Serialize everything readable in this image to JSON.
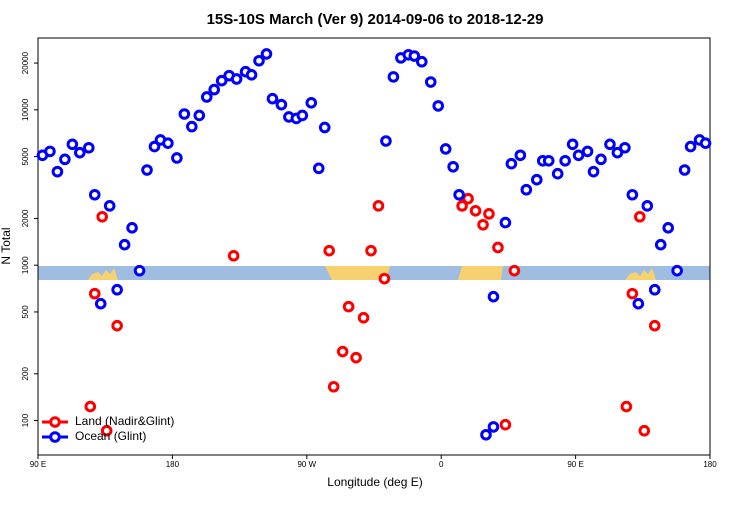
{
  "chart_data": {
    "type": "scatter",
    "title": "15S-10S March (Ver 9)   2014-09-06 to 2018-12-29",
    "x_label": "Longitude (deg E)",
    "y_label": "N Total",
    "y_log": true,
    "legend": "bottom-left",
    "xlim": [
      90,
      540
    ],
    "xticks": [
      {
        "value": 90,
        "label": "90 E"
      },
      {
        "value": 180,
        "label": "180"
      },
      {
        "value": 270,
        "label": "90 W"
      },
      {
        "value": 360,
        "label": "0"
      },
      {
        "value": 450,
        "label": "90 E"
      },
      {
        "value": 540,
        "label": "180"
      }
    ],
    "ylim": [
      60,
      29000
    ],
    "yticks": [
      100,
      200,
      500,
      1000,
      2000,
      5000,
      10000,
      20000
    ],
    "series": [
      {
        "name": "Land (Nadir&Glint)",
        "color": "#ff0000",
        "x": [
          125,
          128,
          133,
          136,
          143,
          221,
          285,
          288,
          294,
          298,
          303,
          308,
          313,
          318,
          322,
          374,
          378,
          383,
          388,
          392,
          398,
          403,
          409,
          484,
          488,
          493,
          496,
          503
        ],
        "values": [
          123,
          656,
          2050,
          86,
          408,
          1150,
          1240,
          165,
          278,
          541,
          254,
          459,
          1240,
          2410,
          819,
          2410,
          2680,
          2240,
          1820,
          2140,
          1300,
          94,
          922,
          123,
          656,
          2050,
          86,
          408
        ]
      },
      {
        "name": "Ocean (Glint)",
        "color": "#0000ff",
        "x": [
          93,
          98,
          103,
          108,
          113,
          118,
          124,
          128,
          132,
          138,
          143,
          148,
          153,
          158,
          163,
          168,
          172,
          177,
          183,
          188,
          193,
          198,
          203,
          208,
          213,
          218,
          223,
          229,
          233,
          238,
          243,
          247,
          253,
          258,
          263,
          267,
          273,
          278,
          282,
          323,
          328,
          333,
          338,
          342,
          347,
          353,
          358,
          363,
          368,
          372,
          390,
          395,
          395,
          403,
          407,
          413,
          417,
          424,
          428,
          432,
          438,
          443,
          448,
          452,
          458,
          462,
          467,
          473,
          478,
          483,
          488,
          492,
          498,
          503,
          507,
          512,
          518,
          523,
          527,
          533,
          537
        ],
        "values": [
          5100,
          5400,
          4000,
          4800,
          6000,
          5300,
          5700,
          2840,
          565,
          2410,
          695,
          1355,
          1740,
          922,
          4100,
          5800,
          6400,
          6100,
          4900,
          9400,
          7800,
          9200,
          12100,
          13500,
          15400,
          16600,
          15800,
          17600,
          16800,
          20700,
          22900,
          11800,
          10800,
          9000,
          8800,
          9200,
          11100,
          4200,
          7700,
          6300,
          16300,
          21600,
          22600,
          22200,
          20400,
          15100,
          10600,
          5600,
          4300,
          2840,
          81,
          627,
          91,
          1880,
          4500,
          5100,
          3060,
          3550,
          4700,
          4700,
          3880,
          4700,
          6000,
          5100,
          5400,
          4000,
          4800,
          6000,
          5300,
          5700,
          2840,
          565,
          2410,
          695,
          1355,
          1740,
          922,
          4100,
          5800,
          6400,
          6100
        ]
      }
    ]
  }
}
